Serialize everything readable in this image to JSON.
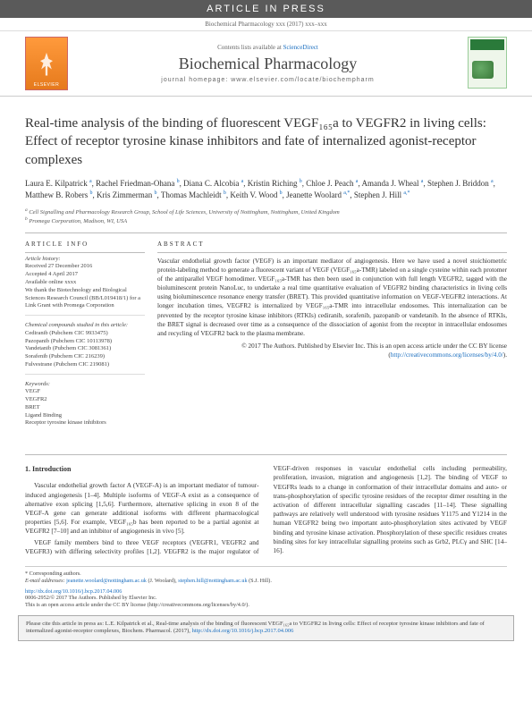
{
  "banner": "ARTICLE IN PRESS",
  "header_ref": "Biochemical Pharmacology xxx (2017) xxx–xxx",
  "masthead": {
    "contents_prefix": "Contents lists available at ",
    "contents_link": "ScienceDirect",
    "journal": "Biochemical Pharmacology",
    "homepage": "journal homepage: www.elsevier.com/locate/biochempharm",
    "publisher": "ELSEVIER"
  },
  "title": "Real-time analysis of the binding of fluorescent VEGF₁₆₅a to VEGFR2 in living cells: Effect of receptor tyrosine kinase inhibitors and fate of internalized agonist-receptor complexes",
  "authors_html": "Laura E. Kilpatrick <sup>a</sup>, Rachel Friedman-Ohana <sup>b</sup>, Diana C. Alcobia <sup>a</sup>, Kristin Riching <sup>b</sup>, Chloe J. Peach <sup>a</sup>, Amanda J. Wheal <sup>a</sup>, Stephen J. Briddon <sup>a</sup>, Matthew B. Robers <sup>b</sup>, Kris Zimmerman <sup>b</sup>, Thomas Machleidt <sup>b</sup>, Keith V. Wood <sup>b</sup>, Jeanette Woolard <sup>a,*</sup>, Stephen J. Hill <sup>a,*</sup>",
  "affiliations": {
    "a": "Cell Signalling and Pharmacology Research Group, School of Life Sciences, University of Nottingham, Nottingham, United Kingdom",
    "b": "Promega Corporation, Madison, WI, USA"
  },
  "article_info": {
    "head": "ARTICLE INFO",
    "history_label": "Article history:",
    "received": "Received 27 December 2016",
    "accepted": "Accepted 4 April 2017",
    "online": "Available online xxxx",
    "funding": "We thank the Biotechnology and Biological Sciences Research Council (BB/L019418/1) for a Link Grant with Promega Corporation",
    "compounds_label": "Chemical compounds studied in this article:",
    "compounds": [
      "Cediranib (Pubchem CIC 9933475)",
      "Pazopanib (Pubchem CIC 10113978)",
      "Vandetanib (Pubchem CIC 3081361)",
      "Sorafenib (Pubchem CIC 216239)",
      "Fulvestrane (Pubchem CIC 219081)"
    ],
    "keywords_label": "Keywords:",
    "keywords": [
      "VEGF",
      "VEGFR2",
      "BRET",
      "Ligand Binding",
      "Receptor tyrosine kinase inhibitors"
    ]
  },
  "abstract": {
    "head": "ABSTRACT",
    "body": "Vascular endothelial growth factor (VEGF) is an important mediator of angiogenesis. Here we have used a novel stoichiometric protein-labeling method to generate a fluorescent variant of VEGF (VEGF₁₆₅a-TMR) labeled on a single cysteine within each protomer of the antiparallel VEGF homodimer. VEGF₁₆₅a-TMR has then been used in conjunction with full length VEGFR2, tagged with the bioluminescent protein NanoLuc, to undertake a real time quantitative evaluation of VEGFR2 binding characteristics in living cells using bioluminescence resonance energy transfer (BRET). This provided quantitative information on VEGF-VEGFR2 interactions. At longer incubation times, VEGFR2 is internalized by VEGF₁₆₅a-TMR into intracellular endosomes. This internalization can be prevented by the receptor tyrosine kinase inhibitors (RTKIs) cediranib, sorafenib, pazopanib or vandetanib. In the absence of RTKIs, the BRET signal is decreased over time as a consequence of the dissociation of agonist from the receptor in intracellular endosomes and recycling of VEGFR2 back to the plasma membrane.",
    "copyright": "© 2017 The Authors. Published by Elsevier Inc. This is an open access article under the CC BY license (",
    "license_url": "http://creativecommons.org/licenses/by/4.0/",
    "close": ")."
  },
  "intro": {
    "head": "1. Introduction",
    "p1": "Vascular endothelial growth factor A (VEGF-A) is an important mediator of tumour-induced angiogenesis [1–4]. Multiple isoforms of VEGF-A exist as a consequence of alternative exon splicing [1,5,6]. Furthermore, alternative splicing in exon 8 of the VEGF-A gene can generate additional isoforms with different pharmacological properties [5,6]. For example, VEGF₁₆₅b has been reported to be a partial agonist at VEGFR2 [7–10] and an inhibitor of angiogenesis in vivo [5].",
    "p2": "VEGF family members bind to three VEGF receptors (VEGFR1, VEGFR2 and VEGFR3) with differing selectivity profiles [1,2]. VEGFR2 is the major regulator of VEGF-driven responses in vascular endothelial cells including permeability, proliferation, invasion, migration and angiogenesis [1,2]. The binding of VEGF to VEGFRs leads to a change in conformation of their intracellular domains and auto- or trans-phosphorylation of specific tyrosine residues of the receptor dimer resulting in the activation of different intracellular signalling cascades [11–14]. These signalling pathways are relatively well understood with tyrosine residues Y1175 and Y1214 in the human VEGFR2 being two important auto-phosphorylation sites activated by VEGF binding and tyrosine kinase activation. Phosphorylation of these specific residues creates binding sites for key intracellular signalling proteins such as Grb2, PLCγ and SHC [14–16]."
  },
  "corresp": {
    "label": "* Corresponding authors.",
    "emails_label": "E-mail addresses:",
    "email1": "jeanette.woolard@nottingham.ac.uk",
    "email1_name": "(J. Woolard)",
    "email2": "stephen.hill@nottingham.ac.uk",
    "email2_name": "(S.J. Hill)"
  },
  "doi": "http://dx.doi.org/10.1016/j.bcp.2017.04.006",
  "footer_copy": "0006-2952/© 2017 The Authors. Published by Elsevier Inc.",
  "footer_license": "This is an open access article under the CC BY license (http://creativecommons.org/licenses/by/4.0/).",
  "citebox": {
    "text": "Please cite this article in press as: L.E. Kilpatrick et al., Real-time analysis of the binding of fluorescent VEGF₁₆₅a to VEGFR2 in living cells: Effect of receptor tyrosine kinase inhibitors and fate of internalized agonist-receptor complexes, Biochem. Pharmacol. (2017), ",
    "link": "http://dx.doi.org/10.1016/j.bcp.2017.04.006"
  }
}
